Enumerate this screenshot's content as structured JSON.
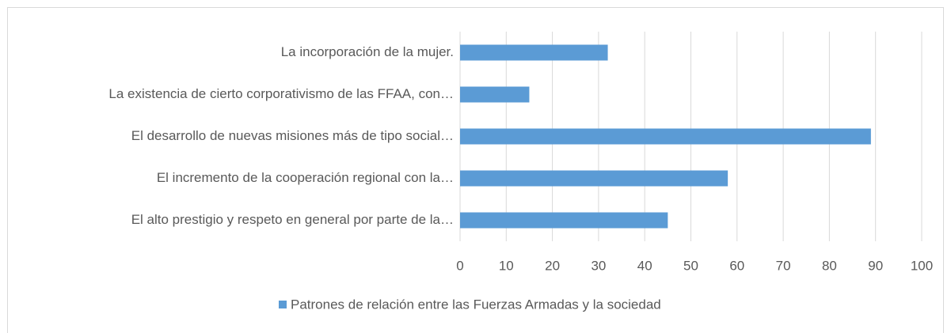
{
  "chart_data": {
    "type": "bar",
    "orientation": "horizontal",
    "categories": [
      "La incorporación de la mujer.",
      "La existencia de cierto corporativismo de las FFAA, con…",
      "El desarrollo de nuevas misiones más de tipo social…",
      "El incremento de la cooperación regional con la…",
      "El alto prestigio y respeto en general por parte de la…"
    ],
    "series": [
      {
        "name": "Patrones de relación entre las Fuerzas Armadas y la sociedad",
        "color": "#5b9bd5",
        "values": [
          32,
          15,
          89,
          58,
          45
        ]
      }
    ],
    "xlim": [
      0,
      100
    ],
    "xticks": [
      0,
      10,
      20,
      30,
      40,
      50,
      60,
      70,
      80,
      90,
      100
    ],
    "grid": true,
    "legend": "bottom"
  }
}
